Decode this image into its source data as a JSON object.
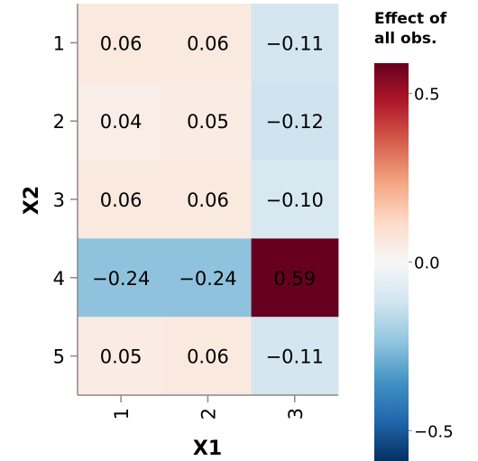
{
  "chart_data": {
    "type": "heatmap",
    "xlabel": "X1",
    "ylabel": "X2",
    "x_categories": [
      "1",
      "2",
      "3"
    ],
    "y_categories": [
      "1",
      "2",
      "3",
      "4",
      "5"
    ],
    "values": [
      [
        0.06,
        0.06,
        -0.11
      ],
      [
        0.04,
        0.05,
        -0.12
      ],
      [
        0.06,
        0.06,
        -0.1
      ],
      [
        -0.24,
        -0.24,
        0.59
      ],
      [
        0.05,
        0.06,
        -0.11
      ]
    ],
    "labels": [
      [
        "0.06",
        "0.06",
        "−0.11"
      ],
      [
        "0.04",
        "0.05",
        "−0.12"
      ],
      [
        "0.06",
        "0.06",
        "−0.10"
      ],
      [
        "−0.24",
        "−0.24",
        "0.59"
      ],
      [
        "0.05",
        "0.06",
        "−0.11"
      ]
    ],
    "color_scale": {
      "scheme": "red-blue diverging",
      "domain": [
        -0.59,
        0.59
      ],
      "title_lines": [
        "Effect of",
        "all obs."
      ],
      "ticks": [
        {
          "value": 0.5,
          "label": "0.5"
        },
        {
          "value": 0.0,
          "label": "0.0"
        },
        {
          "value": -0.5,
          "label": "−0.5"
        }
      ],
      "stops": [
        "#053061",
        "#2166ac",
        "#4393c3",
        "#92c5de",
        "#d1e5f0",
        "#f7f7f7",
        "#fddbc7",
        "#f4a582",
        "#d6604d",
        "#b2182b",
        "#67001f"
      ]
    },
    "legend_position": "right",
    "grid": false
  }
}
